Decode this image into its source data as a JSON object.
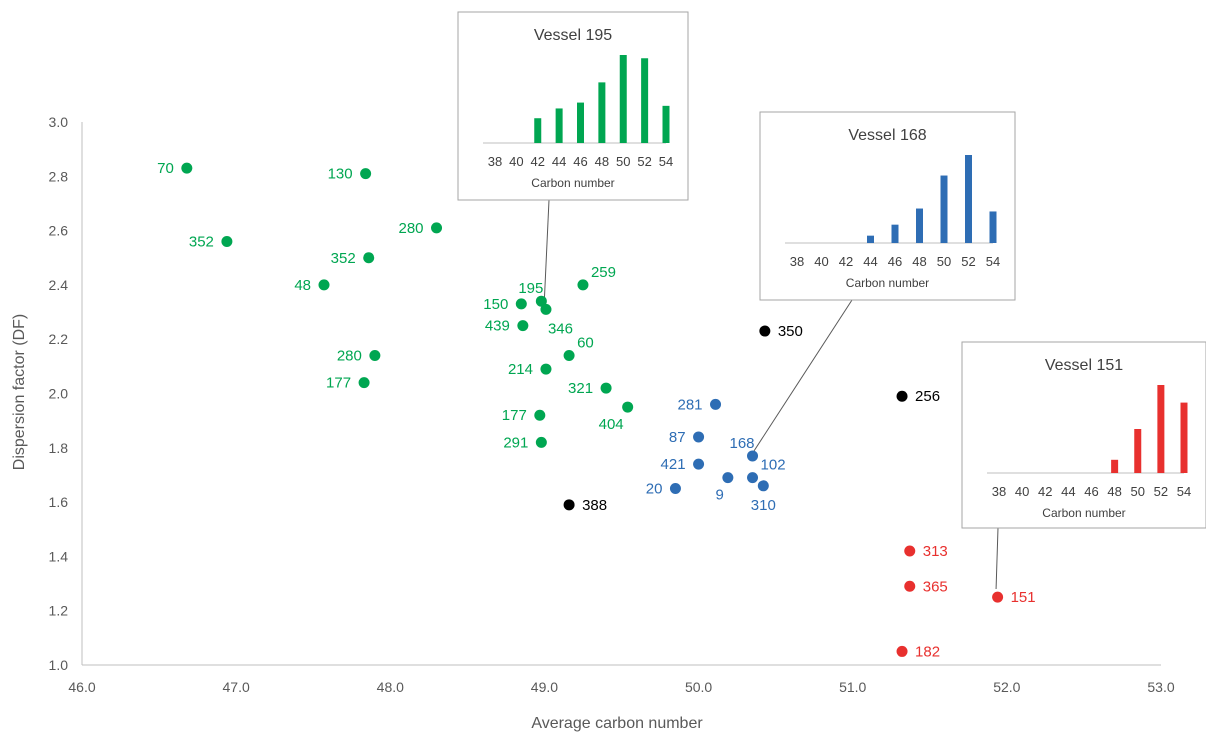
{
  "chart_data": {
    "type": "scatter",
    "xlabel": "Average carbon number",
    "ylabel": "Dispersion factor (DF)",
    "xlim": [
      46.0,
      53.0
    ],
    "ylim": [
      1.0,
      3.0
    ],
    "x_ticks": [
      "46.0",
      "47.0",
      "48.0",
      "49.0",
      "50.0",
      "51.0",
      "52.0",
      "53.0"
    ],
    "y_ticks": [
      "1.0",
      "1.2",
      "1.4",
      "1.6",
      "1.8",
      "2.0",
      "2.2",
      "2.4",
      "2.6",
      "2.8",
      "3.0"
    ],
    "grid": false,
    "colors": {
      "green": "#00a651",
      "blue": "#2e6db4",
      "black": "#000000",
      "red": "#e8302e"
    },
    "points": [
      {
        "label": "70",
        "x": 46.68,
        "y": 2.83,
        "color": "green",
        "side": "left"
      },
      {
        "label": "352",
        "x": 46.94,
        "y": 2.56,
        "color": "green",
        "side": "left"
      },
      {
        "label": "130",
        "x": 47.84,
        "y": 2.81,
        "color": "green",
        "side": "left"
      },
      {
        "label": "352",
        "x": 47.86,
        "y": 2.5,
        "color": "green",
        "side": "left"
      },
      {
        "label": "48",
        "x": 47.57,
        "y": 2.4,
        "color": "green",
        "side": "left"
      },
      {
        "label": "280",
        "x": 48.3,
        "y": 2.61,
        "color": "green",
        "side": "left"
      },
      {
        "label": "280",
        "x": 47.9,
        "y": 2.14,
        "color": "green",
        "side": "left"
      },
      {
        "label": "177",
        "x": 47.83,
        "y": 2.04,
        "color": "green",
        "side": "left"
      },
      {
        "label": "195",
        "x": 48.98,
        "y": 2.34,
        "color": "green",
        "side": "top-left"
      },
      {
        "label": "150",
        "x": 48.85,
        "y": 2.33,
        "color": "green",
        "side": "left"
      },
      {
        "label": "259",
        "x": 49.25,
        "y": 2.4,
        "color": "green",
        "side": "top-right"
      },
      {
        "label": "346",
        "x": 49.01,
        "y": 2.31,
        "color": "green",
        "side": "bottom-right"
      },
      {
        "label": "439",
        "x": 48.86,
        "y": 2.25,
        "color": "green",
        "side": "left"
      },
      {
        "label": "60",
        "x": 49.16,
        "y": 2.14,
        "color": "green",
        "side": "top-right"
      },
      {
        "label": "214",
        "x": 49.01,
        "y": 2.09,
        "color": "green",
        "side": "left"
      },
      {
        "label": "321",
        "x": 49.4,
        "y": 2.02,
        "color": "green",
        "side": "left"
      },
      {
        "label": "177",
        "x": 48.97,
        "y": 1.92,
        "color": "green",
        "side": "left"
      },
      {
        "label": "404",
        "x": 49.54,
        "y": 1.95,
        "color": "green",
        "side": "bottom-left"
      },
      {
        "label": "291",
        "x": 48.98,
        "y": 1.82,
        "color": "green",
        "side": "left"
      },
      {
        "label": "281",
        "x": 50.11,
        "y": 1.96,
        "color": "blue",
        "side": "left"
      },
      {
        "label": "87",
        "x": 50.0,
        "y": 1.84,
        "color": "blue",
        "side": "left"
      },
      {
        "label": "168",
        "x": 50.35,
        "y": 1.77,
        "color": "blue",
        "side": "top-left"
      },
      {
        "label": "421",
        "x": 50.0,
        "y": 1.74,
        "color": "blue",
        "side": "left"
      },
      {
        "label": "102",
        "x": 50.35,
        "y": 1.69,
        "color": "blue",
        "side": "top-right"
      },
      {
        "label": "9",
        "x": 50.19,
        "y": 1.69,
        "color": "blue",
        "side": "bottom-left"
      },
      {
        "label": "20",
        "x": 49.85,
        "y": 1.65,
        "color": "blue",
        "side": "left"
      },
      {
        "label": "310",
        "x": 50.42,
        "y": 1.66,
        "color": "blue",
        "side": "bottom"
      },
      {
        "label": "350",
        "x": 50.43,
        "y": 2.23,
        "color": "black",
        "side": "right"
      },
      {
        "label": "256",
        "x": 51.32,
        "y": 1.99,
        "color": "black",
        "side": "right"
      },
      {
        "label": "388",
        "x": 49.16,
        "y": 1.59,
        "color": "black",
        "side": "right"
      },
      {
        "label": "313",
        "x": 51.37,
        "y": 1.42,
        "color": "red",
        "side": "right"
      },
      {
        "label": "365",
        "x": 51.37,
        "y": 1.29,
        "color": "red",
        "side": "right"
      },
      {
        "label": "151",
        "x": 51.94,
        "y": 1.25,
        "color": "red",
        "side": "right"
      },
      {
        "label": "182",
        "x": 51.32,
        "y": 1.05,
        "color": "red",
        "side": "right"
      }
    ],
    "insets": [
      {
        "title": "Vessel 195",
        "color": "green",
        "xlabel": "Carbon number",
        "categories": [
          "38",
          "40",
          "42",
          "44",
          "46",
          "48",
          "50",
          "52",
          "54"
        ],
        "values": [
          0,
          0,
          0.38,
          0.53,
          0.62,
          0.93,
          1.35,
          1.3,
          0.57
        ],
        "points_to": {
          "x": 49.0,
          "y": 2.35
        }
      },
      {
        "title": "Vessel 168",
        "color": "blue",
        "xlabel": "Carbon number",
        "categories": [
          "38",
          "40",
          "42",
          "44",
          "46",
          "48",
          "50",
          "52",
          "54"
        ],
        "values": [
          0,
          0,
          0,
          0.1,
          0.25,
          0.47,
          0.92,
          1.2,
          0.43
        ],
        "points_to": {
          "x": 50.35,
          "y": 1.78
        }
      },
      {
        "title": "Vessel 151",
        "color": "red",
        "xlabel": "Carbon number",
        "categories": [
          "38",
          "40",
          "42",
          "44",
          "46",
          "48",
          "50",
          "52",
          "54"
        ],
        "values": [
          0,
          0,
          0,
          0,
          0,
          0.15,
          0.5,
          1.0,
          0.8
        ],
        "points_to": {
          "x": 51.93,
          "y": 1.28
        }
      }
    ]
  }
}
